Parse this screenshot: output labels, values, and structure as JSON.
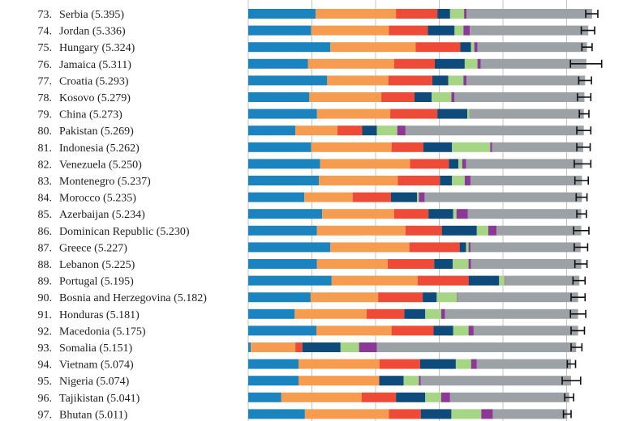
{
  "chart_data": {
    "type": "bar",
    "orientation": "horizontal",
    "stacked": true,
    "title": "",
    "xlabel": "",
    "ylabel": "",
    "xlim": [
      0,
      5.5
    ],
    "grid": true,
    "gridlines_x": [
      0,
      1,
      2,
      3,
      4,
      5
    ],
    "segment_colors": [
      "#1b84bf",
      "#f59c50",
      "#ee4a38",
      "#0f4b7a",
      "#a6d585",
      "#8b3896",
      "#9ca1a5"
    ],
    "errorbar_color": "#111111",
    "rows": [
      {
        "rank": "73.",
        "country": "Serbia",
        "score": "5.395",
        "segments": [
          1.06,
          1.26,
          0.65,
          0.2,
          0.22,
          0.04,
          1.97
        ],
        "ci": [
          5.3,
          5.49
        ]
      },
      {
        "rank": "74.",
        "country": "Jordan",
        "score": "5.336",
        "segments": [
          0.99,
          1.22,
          0.61,
          0.42,
          0.14,
          0.1,
          1.86
        ],
        "ci": [
          5.23,
          5.44
        ]
      },
      {
        "rank": "75.",
        "country": "Hungary",
        "score": "5.324",
        "segments": [
          1.29,
          1.34,
          0.7,
          0.17,
          0.05,
          0.05,
          1.72
        ],
        "ci": [
          5.24,
          5.4
        ]
      },
      {
        "rank": "76.",
        "country": "Jamaica",
        "score": "5.311",
        "segments": [
          0.94,
          1.35,
          0.64,
          0.47,
          0.2,
          0.05,
          1.66
        ],
        "ci": [
          5.06,
          5.55
        ]
      },
      {
        "rank": "77.",
        "country": "Croatia",
        "score": "5.293",
        "segments": [
          1.24,
          0.96,
          0.69,
          0.25,
          0.24,
          0.05,
          1.86
        ],
        "ci": [
          5.19,
          5.39
        ]
      },
      {
        "rank": "78.",
        "country": "Kosovo",
        "score": "5.279",
        "segments": [
          0.96,
          1.13,
          0.52,
          0.27,
          0.31,
          0.05,
          2.04
        ],
        "ci": [
          5.17,
          5.38
        ]
      },
      {
        "rank": "79.",
        "country": "China",
        "score": "5.273",
        "segments": [
          1.08,
          1.15,
          0.74,
          0.47,
          0.03,
          0.0,
          1.8
        ],
        "ci": [
          5.2,
          5.35
        ]
      },
      {
        "rank": "80.",
        "country": "Pakistan",
        "score": "5.269",
        "segments": [
          0.74,
          0.66,
          0.39,
          0.23,
          0.32,
          0.13,
          2.8
        ],
        "ci": [
          5.16,
          5.38
        ]
      },
      {
        "rank": "81.",
        "country": "Indonesia",
        "score": "5.262",
        "segments": [
          0.99,
          1.26,
          0.5,
          0.45,
          0.6,
          0.03,
          1.43
        ],
        "ci": [
          5.16,
          5.37
        ]
      },
      {
        "rank": "82.",
        "country": "Venezuela",
        "score": "5.250",
        "segments": [
          1.13,
          1.41,
          0.61,
          0.15,
          0.06,
          0.06,
          1.83
        ],
        "ci": [
          5.12,
          5.38
        ]
      },
      {
        "rank": "83.",
        "country": "Montenegro",
        "score": "5.237",
        "segments": [
          1.11,
          1.24,
          0.66,
          0.19,
          0.2,
          0.09,
          1.75
        ],
        "ci": [
          5.13,
          5.34
        ]
      },
      {
        "rank": "84.",
        "country": "Morocco",
        "score": "5.235",
        "segments": [
          0.88,
          0.76,
          0.6,
          0.41,
          0.03,
          0.09,
          2.47
        ],
        "ci": [
          5.15,
          5.32
        ]
      },
      {
        "rank": "85.",
        "country": "Azerbaijan",
        "score": "5.234",
        "segments": [
          1.16,
          1.13,
          0.54,
          0.39,
          0.05,
          0.18,
          1.78
        ],
        "ci": [
          5.16,
          5.31
        ]
      },
      {
        "rank": "86.",
        "country": "Dominican Republic",
        "score": "5.230",
        "segments": [
          1.08,
          1.39,
          0.57,
          0.55,
          0.18,
          0.13,
          1.33
        ],
        "ci": [
          5.11,
          5.35
        ]
      },
      {
        "rank": "87.",
        "country": "Greece",
        "score": "5.227",
        "segments": [
          1.29,
          1.24,
          0.79,
          0.1,
          0.04,
          0.03,
          1.73
        ],
        "ci": [
          5.12,
          5.33
        ]
      },
      {
        "rank": "88.",
        "country": "Lebanon",
        "score": "5.225",
        "segments": [
          1.08,
          1.11,
          0.73,
          0.29,
          0.25,
          0.04,
          1.73
        ],
        "ci": [
          5.13,
          5.32
        ]
      },
      {
        "rank": "89.",
        "country": "Portugal",
        "score": "5.195",
        "segments": [
          1.31,
          1.35,
          0.8,
          0.48,
          0.09,
          0.01,
          1.16
        ],
        "ci": [
          5.1,
          5.29
        ]
      },
      {
        "rank": "90.",
        "country": "Bosnia and Herzegovina",
        "score": "5.182",
        "segments": [
          0.98,
          1.06,
          0.7,
          0.22,
          0.32,
          0.01,
          1.89
        ],
        "ci": [
          5.07,
          5.29
        ]
      },
      {
        "rank": "91.",
        "country": "Honduras",
        "score": "5.181",
        "segments": [
          0.73,
          1.13,
          0.59,
          0.33,
          0.25,
          0.06,
          2.09
        ],
        "ci": [
          5.06,
          5.3
        ]
      },
      {
        "rank": "92.",
        "country": "Macedonia",
        "score": "5.175",
        "segments": [
          1.07,
          1.18,
          0.66,
          0.31,
          0.24,
          0.08,
          1.64
        ],
        "ci": [
          5.07,
          5.28
        ]
      },
      {
        "rank": "93.",
        "country": "Somalia",
        "score": "5.151",
        "segments": [
          0.04,
          0.7,
          0.11,
          0.6,
          0.29,
          0.28,
          3.13
        ],
        "ci": [
          5.07,
          5.24
        ]
      },
      {
        "rank": "94.",
        "country": "Vietnam",
        "score": "5.074",
        "segments": [
          0.79,
          1.27,
          0.64,
          0.56,
          0.24,
          0.09,
          1.48
        ],
        "ci": [
          5.01,
          5.14
        ]
      },
      {
        "rank": "95.",
        "country": "Nigeria",
        "score": "5.074",
        "segments": [
          0.79,
          1.26,
          0.01,
          0.38,
          0.24,
          0.03,
          2.36
        ],
        "ci": [
          4.93,
          5.22
        ]
      },
      {
        "rank": "96.",
        "country": "Tajikistan",
        "score": "5.041",
        "segments": [
          0.52,
          1.26,
          0.54,
          0.46,
          0.25,
          0.14,
          1.87
        ],
        "ci": [
          4.97,
          5.11
        ]
      },
      {
        "rank": "97.",
        "country": "Bhutan",
        "score": "5.011",
        "segments": [
          0.89,
          1.32,
          0.5,
          0.48,
          0.47,
          0.18,
          1.17
        ],
        "ci": [
          4.95,
          5.07
        ]
      }
    ]
  }
}
